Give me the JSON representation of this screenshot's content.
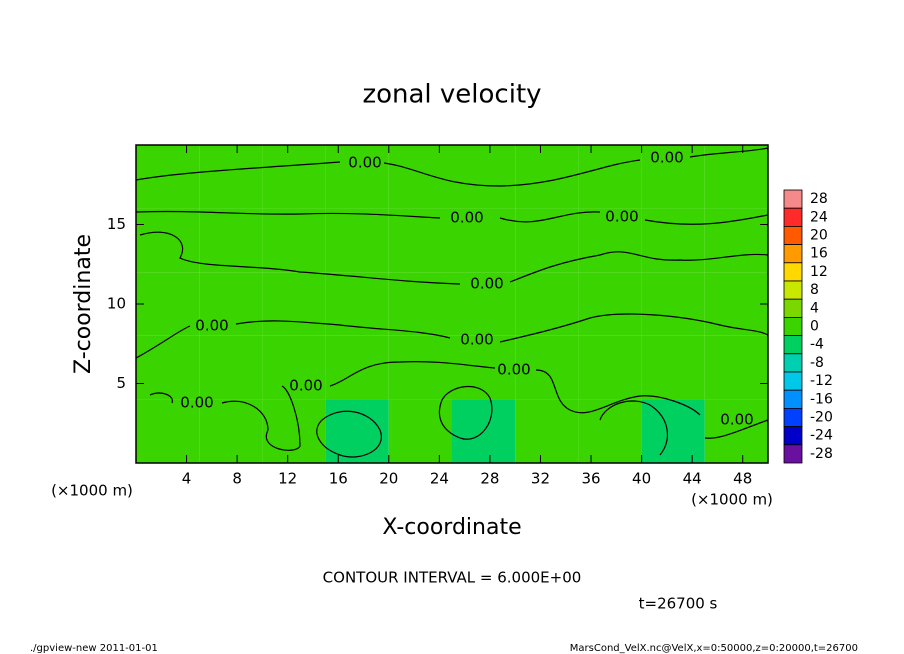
{
  "chart_data": {
    "type": "contour",
    "title": "zonal velocity",
    "x_label": "X-coordinate",
    "y_label": "Z-coordinate",
    "x_unit": "(×1000 m)",
    "x_unit_right": "(×1000 m)",
    "xlim": [
      0,
      50
    ],
    "ylim": [
      0,
      20
    ],
    "xticks": [
      4,
      8,
      12,
      16,
      20,
      24,
      28,
      32,
      36,
      40,
      44,
      48
    ],
    "yticks": [
      5,
      10,
      15
    ],
    "field": {
      "x": [
        2.5,
        7.5,
        12.5,
        17.5,
        22.5,
        27.5,
        32.5,
        37.5,
        42.5,
        47.5
      ],
      "y": [
        18,
        14,
        10,
        6,
        2
      ],
      "z": [
        [
          1,
          1,
          1,
          1,
          1,
          1,
          1,
          1,
          1,
          1
        ],
        [
          1,
          1,
          1,
          1,
          1,
          1,
          1,
          1,
          1,
          1
        ],
        [
          1,
          1,
          1,
          1,
          1,
          1,
          1,
          1,
          1,
          1
        ],
        [
          1,
          2,
          1,
          1,
          1,
          1,
          1,
          1,
          1,
          1
        ],
        [
          2,
          2,
          1,
          -1,
          1,
          -1,
          1,
          1,
          -1,
          2
        ]
      ]
    },
    "colorbar": {
      "levels": [
        28,
        24,
        20,
        16,
        12,
        8,
        4,
        0,
        -4,
        -8,
        -12,
        -16,
        -20,
        -24,
        -28
      ],
      "colors": [
        "#f58a8a",
        "#ff2a2a",
        "#ff5a00",
        "#ff9a00",
        "#ffd800",
        "#c8e800",
        "#7ad800",
        "#3ad400",
        "#00d060",
        "#00d0b0",
        "#00c8e8",
        "#0090ff",
        "#0040ff",
        "#0000c8",
        "#6a10a0"
      ]
    },
    "contour_labels": [
      "0.00",
      "0.00",
      "0.00",
      "0.00",
      "0.00",
      "0.00",
      "0.00",
      "0.00",
      "0.00",
      "0.00",
      "0.00"
    ],
    "contour_interval": "CONTOUR INTERVAL = 6.000E+00",
    "time_label": "t=26700 s",
    "footer_left": "./gpview-new  2011-01-01",
    "footer_right": "MarsCond_VelX.nc@VelX,x=0:50000,z=0:20000,t=26700"
  }
}
